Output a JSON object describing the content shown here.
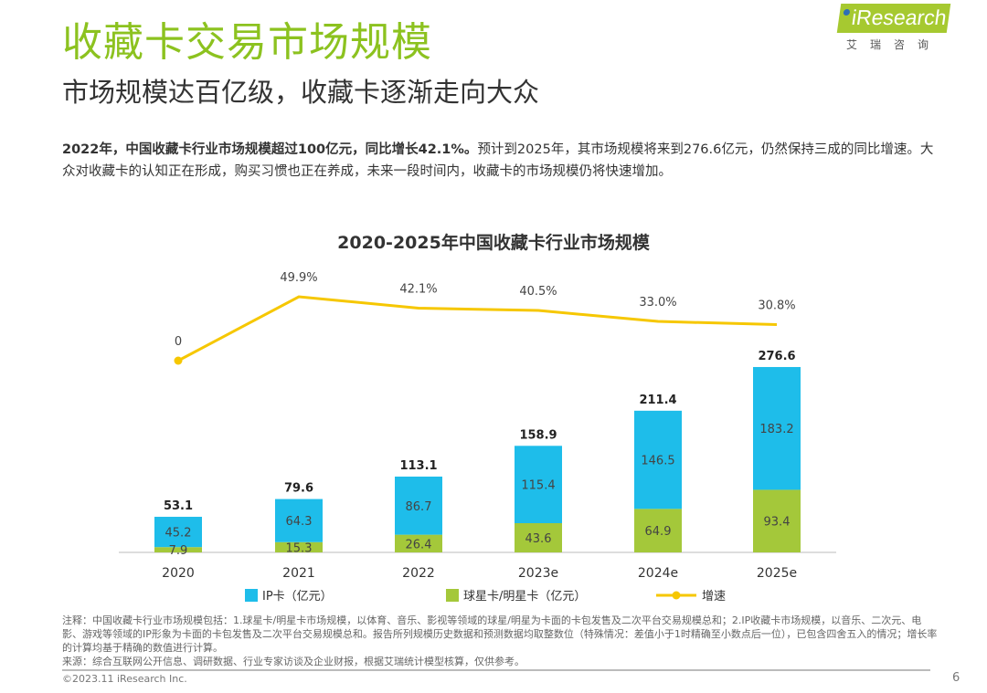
{
  "header": {
    "title": "收藏卡交易市场规模",
    "subtitle": "市场规模达百亿级，收藏卡逐渐走向大众",
    "summary_bold": "2022年，中国收藏卡行业市场规模超过100亿元，同比增长42.1%。",
    "summary_rest": "预计到2025年，其市场规模将来到276.6亿元，仍然保持三成的同比增速。大众对收藏卡的认知正在形成，购买习惯也正在养成，未来一段时间内，收藏卡的市场规模仍将快速增加。"
  },
  "logo": {
    "text": "iResearch",
    "cn": "艾瑞咨询"
  },
  "chart_data": {
    "type": "bar",
    "stacked": true,
    "title": "2020-2025年中国收藏卡行业市场规模",
    "categories": [
      "2020",
      "2021",
      "2022",
      "2023e",
      "2024e",
      "2025e"
    ],
    "series": [
      {
        "name": "球星卡/明星卡（亿元）",
        "values": [
          7.9,
          15.3,
          26.4,
          43.6,
          64.9,
          93.4
        ],
        "color": "#a4c83a"
      },
      {
        "name": "IP卡（亿元）",
        "values": [
          45.2,
          64.3,
          86.7,
          115.4,
          146.5,
          183.2
        ],
        "color": "#1ebdea"
      }
    ],
    "totals": [
      53.1,
      79.6,
      113.1,
      158.9,
      211.4,
      276.6
    ],
    "line": {
      "name": "增速",
      "values": [
        0,
        49.9,
        42.1,
        40.5,
        33.0,
        30.8
      ],
      "labels": [
        "0",
        "49.9%",
        "42.1%",
        "40.5%",
        "33.0%",
        "30.8%"
      ],
      "color": "#f6c700"
    },
    "legend_placement": "bottom",
    "grid": false
  },
  "footer": {
    "notes": "注释：中国收藏卡行业市场规模包括：1.球星卡/明星卡市场规模，以体育、音乐、影视等领域的球星/明星为卡面的卡包发售及二次平台交易规模总和；2.IP收藏卡市场规模，以音乐、二次元、电影、游戏等领域的IP形象为卡面的卡包发售及二次平台交易规模总和。报告所列规模历史数据和预测数据均取整数位（特殊情况：差值小于1时精确至小数点后一位），已包含四舍五入的情况；增长率的计算均基于精确的数值进行计算。",
    "source": "来源：综合互联网公开信息、调研数据、行业专家访谈及企业财报，根据艾瑞统计模型核算，仅供参考。",
    "copyright": "©2023.11 iResearch Inc.",
    "page": "6"
  }
}
